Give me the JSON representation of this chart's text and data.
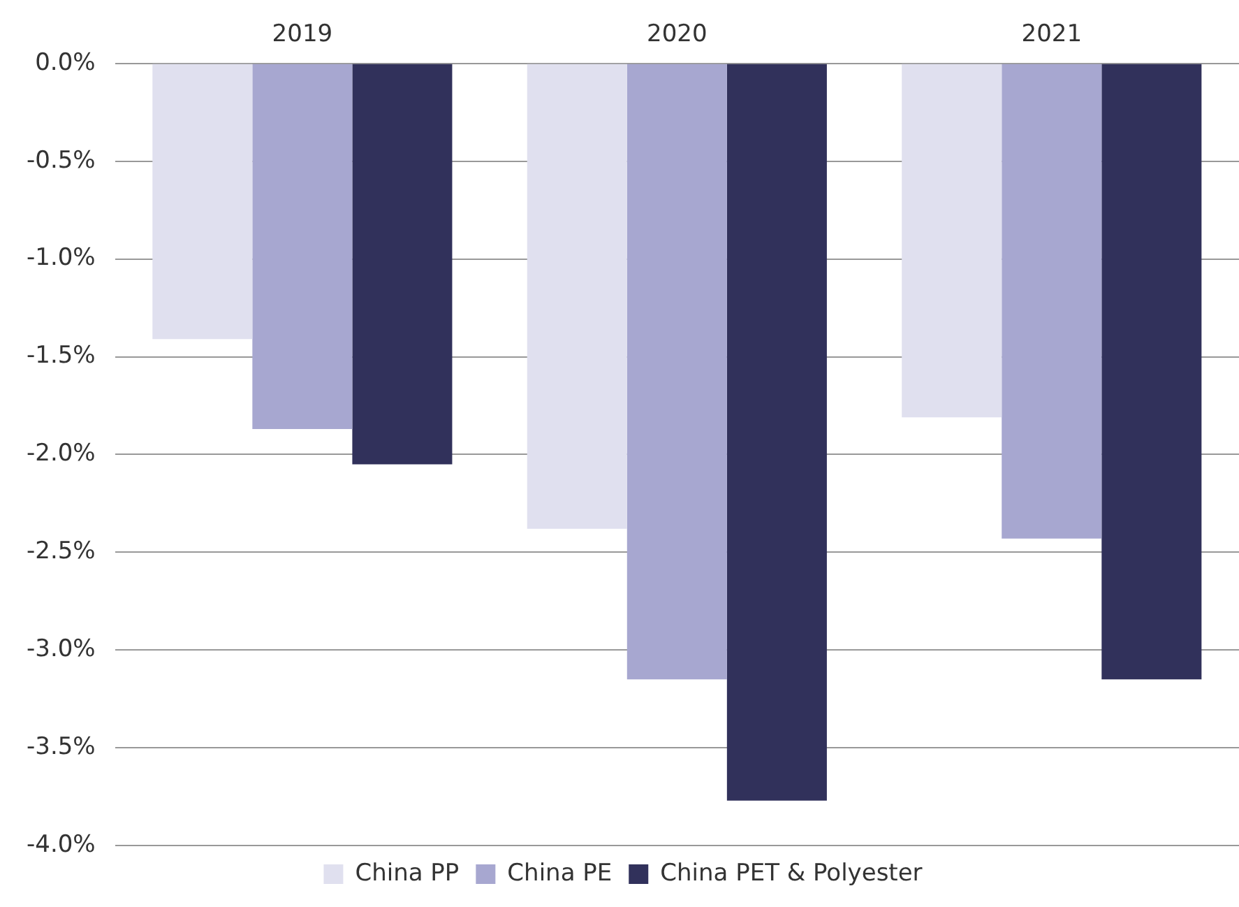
{
  "chart_data": {
    "type": "bar",
    "categories": [
      "2019",
      "2020",
      "2021"
    ],
    "series": [
      {
        "name": "China PP",
        "color": "#e0e0ef",
        "values": [
          -1.41,
          -2.38,
          -1.81
        ]
      },
      {
        "name": "China PE",
        "color": "#a7a7d0",
        "values": [
          -1.87,
          -3.15,
          -2.43
        ]
      },
      {
        "name": "China PET & Polyester",
        "color": "#31315b",
        "values": [
          -2.05,
          -3.77,
          -3.15
        ]
      }
    ],
    "ylim": [
      -4,
      0
    ],
    "yticks": [
      {
        "value": 0,
        "label": "0.0%"
      },
      {
        "value": -0.5,
        "label": "-0.5%"
      },
      {
        "value": -1,
        "label": "-1.0%"
      },
      {
        "value": -1.5,
        "label": "-1.5%"
      },
      {
        "value": -2,
        "label": "-2.0%"
      },
      {
        "value": -2.5,
        "label": "-2.5%"
      },
      {
        "value": -3,
        "label": "-3.0%"
      },
      {
        "value": -3.5,
        "label": "-3.5%"
      },
      {
        "value": -4,
        "label": "-4.0%"
      }
    ],
    "grid": "y",
    "legend": "bottom"
  }
}
